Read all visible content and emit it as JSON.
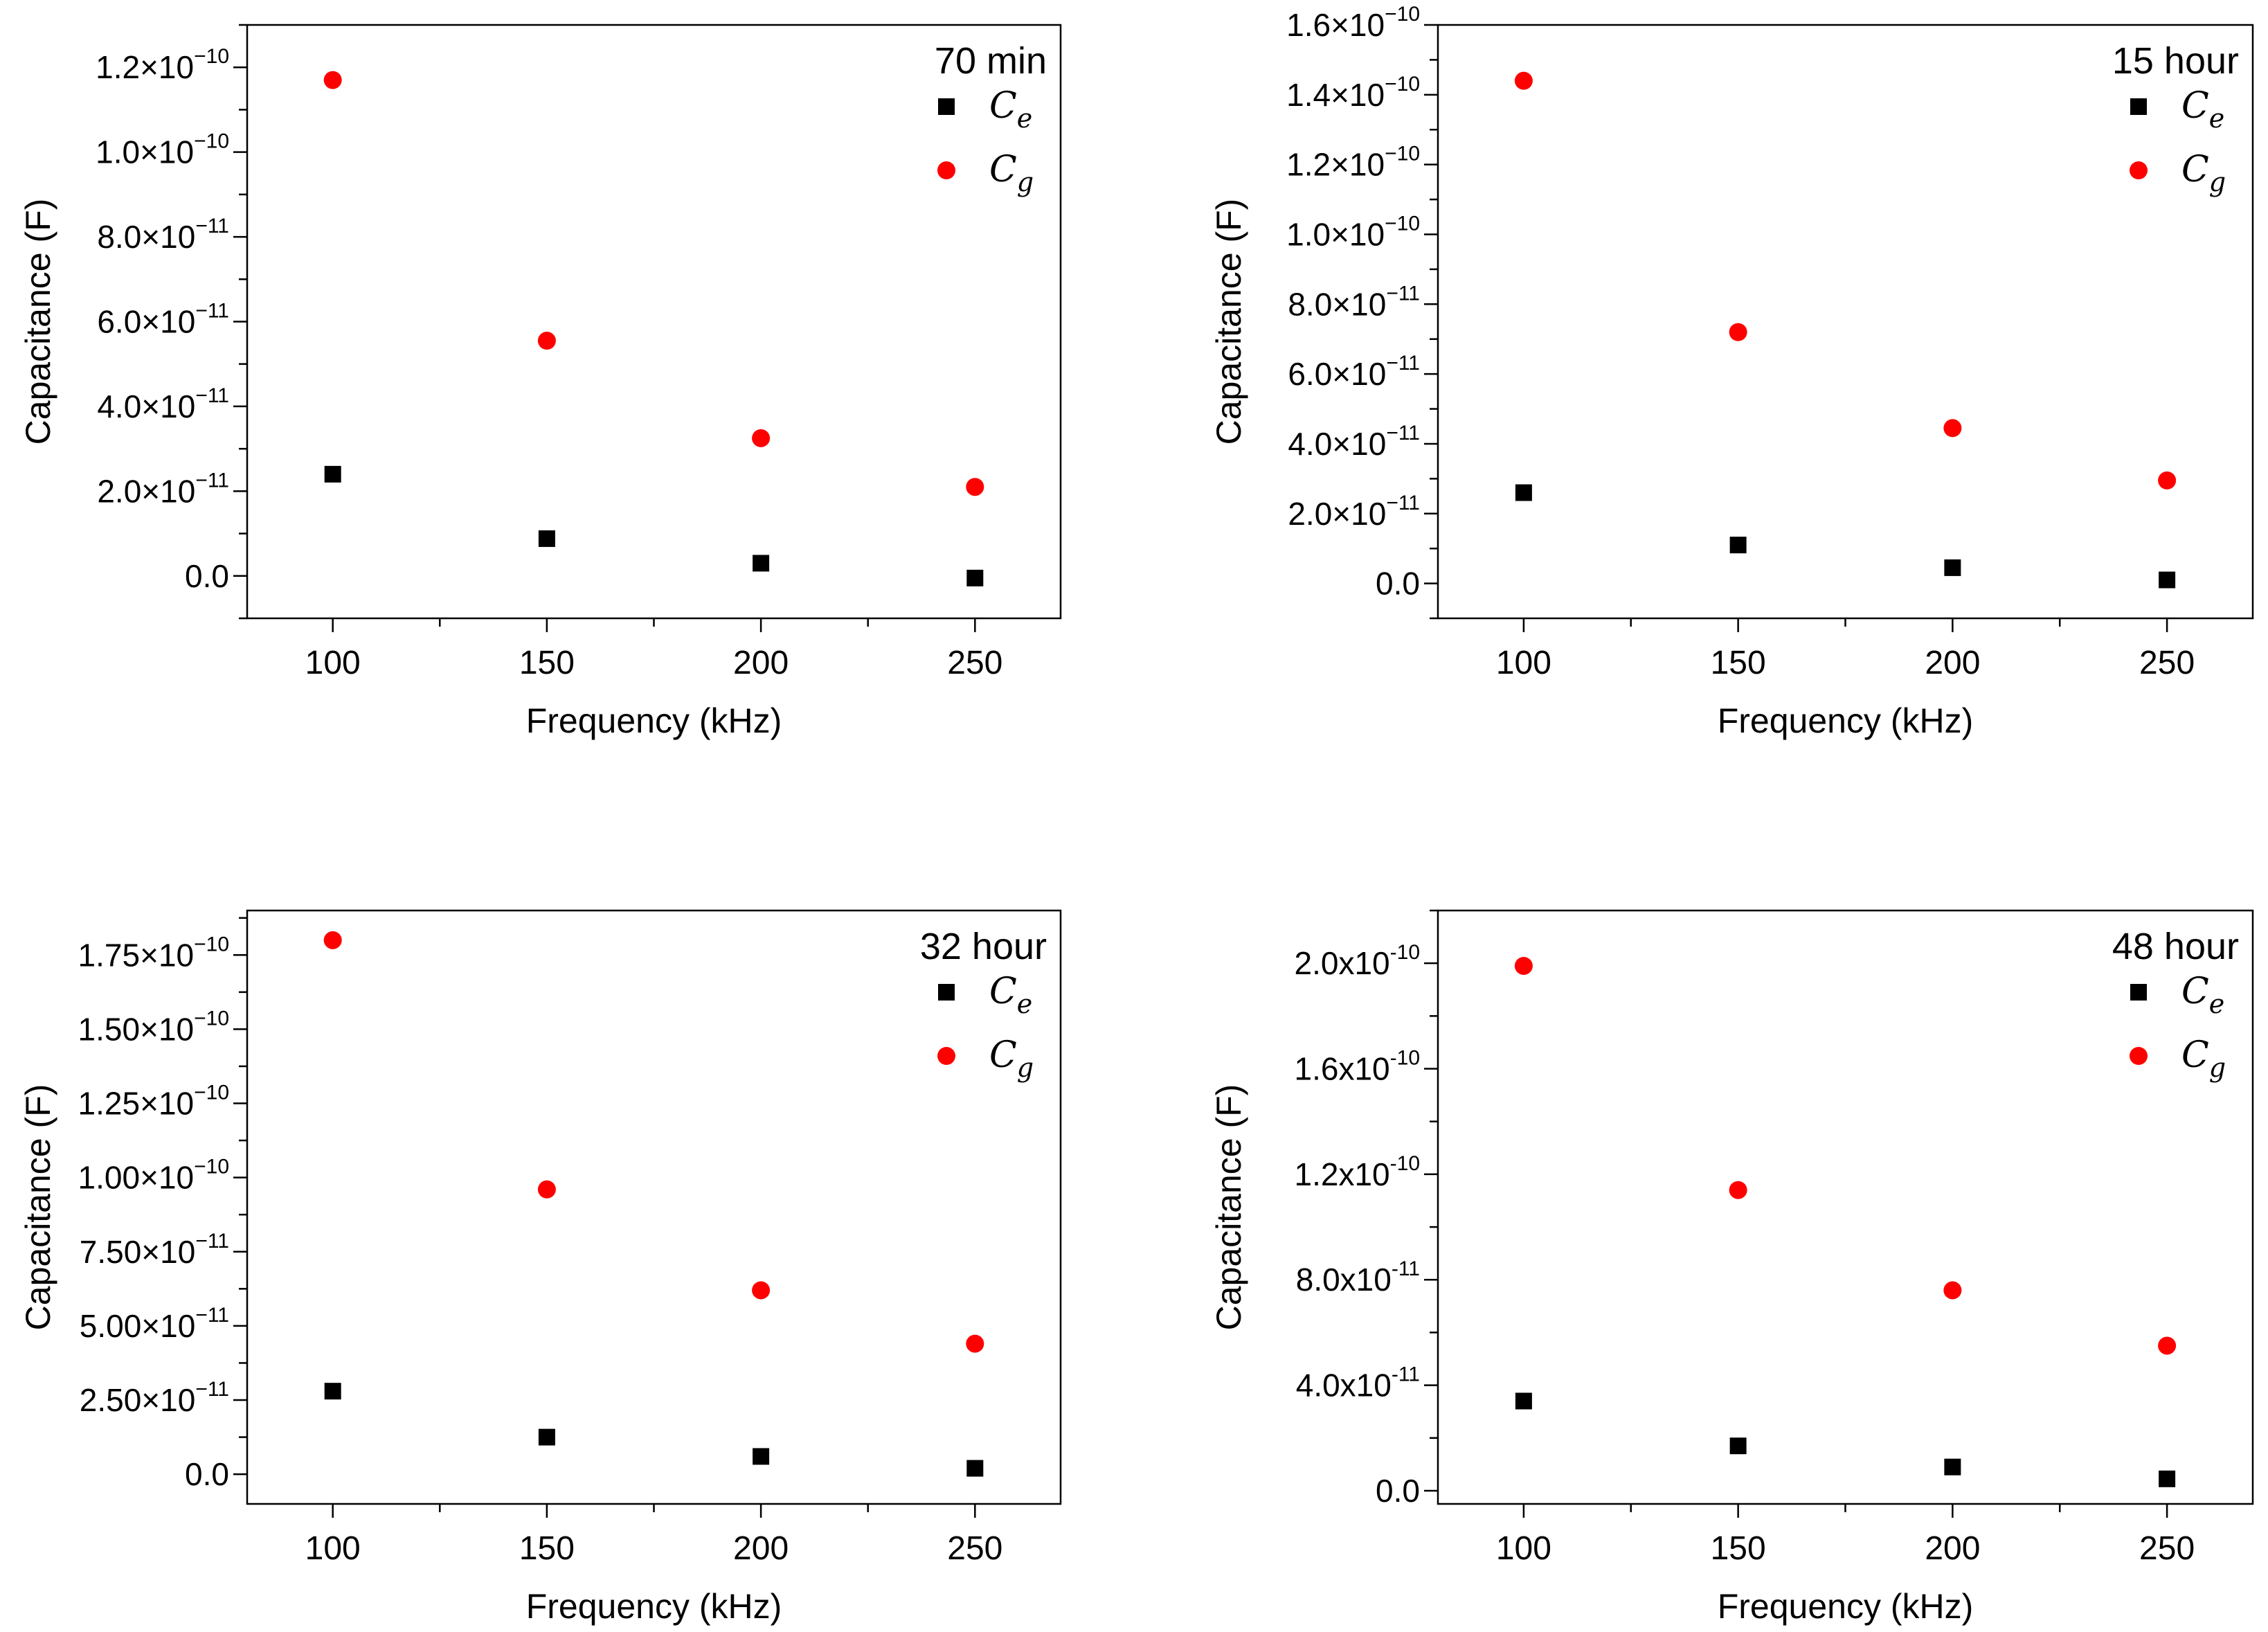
{
  "colors": {
    "Ce": "#000000",
    "Cg": "#ff0000",
    "axis": "#000000"
  },
  "chart_data": [
    {
      "type": "scatter",
      "title": "70 min",
      "xlabel": "Frequency (kHz)",
      "ylabel": "Capacitance (F)",
      "xlim": [
        80,
        270
      ],
      "ylim": [
        -1e-11,
        1.3e-10
      ],
      "xticks": [
        100,
        150,
        200,
        250
      ],
      "xtick_labels": [
        "100",
        "150",
        "200",
        "250"
      ],
      "yticks": [
        0,
        2e-11,
        4e-11,
        6e-11,
        8e-11,
        1e-10,
        1.2e-10
      ],
      "ytick_labels": [
        {
          "base": "0.0",
          "exp": ""
        },
        {
          "base": "2.0×10",
          "exp": "−11"
        },
        {
          "base": "4.0×10",
          "exp": "−11"
        },
        {
          "base": "6.0×10",
          "exp": "−11"
        },
        {
          "base": "8.0×10",
          "exp": "−11"
        },
        {
          "base": "1.0×10",
          "exp": "−10"
        },
        {
          "base": "1.2×10",
          "exp": "−10"
        }
      ],
      "x": [
        100,
        150,
        200,
        250
      ],
      "series": [
        {
          "name": "Ce",
          "label_base": "C",
          "label_sub": "e",
          "marker": "square",
          "values": [
            2.4e-11,
            8.8e-12,
            3e-12,
            -5e-13
          ]
        },
        {
          "name": "Cg",
          "label_base": "C",
          "label_sub": "g",
          "marker": "circle",
          "values": [
            1.17e-10,
            5.55e-11,
            3.25e-11,
            2.1e-11
          ]
        }
      ]
    },
    {
      "type": "scatter",
      "title": "15 hour",
      "xlabel": "Frequency (kHz)",
      "ylabel": "Capacitance (F)",
      "xlim": [
        80,
        270
      ],
      "ylim": [
        -1e-11,
        1.6e-10
      ],
      "xticks": [
        100,
        150,
        200,
        250
      ],
      "xtick_labels": [
        "100",
        "150",
        "200",
        "250"
      ],
      "yticks": [
        0,
        2e-11,
        4e-11,
        6e-11,
        8e-11,
        1e-10,
        1.2e-10,
        1.4e-10,
        1.6e-10
      ],
      "ytick_labels": [
        {
          "base": "0.0",
          "exp": ""
        },
        {
          "base": "2.0×10",
          "exp": "−11"
        },
        {
          "base": "4.0×10",
          "exp": "−11"
        },
        {
          "base": "6.0×10",
          "exp": "−11"
        },
        {
          "base": "8.0×10",
          "exp": "−11"
        },
        {
          "base": "1.0×10",
          "exp": "−10"
        },
        {
          "base": "1.2×10",
          "exp": "−10"
        },
        {
          "base": "1.4×10",
          "exp": "−10"
        },
        {
          "base": "1.6×10",
          "exp": "−10"
        }
      ],
      "x": [
        100,
        150,
        200,
        250
      ],
      "series": [
        {
          "name": "Ce",
          "label_base": "C",
          "label_sub": "e",
          "marker": "square",
          "values": [
            2.6e-11,
            1.1e-11,
            4.5e-12,
            1e-12
          ]
        },
        {
          "name": "Cg",
          "label_base": "C",
          "label_sub": "g",
          "marker": "circle",
          "values": [
            1.44e-10,
            7.2e-11,
            4.45e-11,
            2.95e-11
          ]
        }
      ]
    },
    {
      "type": "scatter",
      "title": "32 hour",
      "xlabel": "Frequency (kHz)",
      "ylabel": "Capacitance (F)",
      "xlim": [
        80,
        270
      ],
      "ylim": [
        -1e-11,
        1.9e-10
      ],
      "xticks": [
        100,
        150,
        200,
        250
      ],
      "xtick_labels": [
        "100",
        "150",
        "200",
        "250"
      ],
      "yticks": [
        0,
        2.5e-11,
        5e-11,
        7.5e-11,
        1e-10,
        1.25e-10,
        1.5e-10,
        1.75e-10
      ],
      "ytick_labels": [
        {
          "base": "0.0",
          "exp": ""
        },
        {
          "base": "2.50×10",
          "exp": "−11"
        },
        {
          "base": "5.00×10",
          "exp": "−11"
        },
        {
          "base": "7.50×10",
          "exp": "−11"
        },
        {
          "base": "1.00×10",
          "exp": "−10"
        },
        {
          "base": "1.25×10",
          "exp": "−10"
        },
        {
          "base": "1.50×10",
          "exp": "−10"
        },
        {
          "base": "1.75×10",
          "exp": "−10"
        }
      ],
      "x": [
        100,
        150,
        200,
        250
      ],
      "series": [
        {
          "name": "Ce",
          "label_base": "C",
          "label_sub": "e",
          "marker": "square",
          "values": [
            2.8e-11,
            1.25e-11,
            6e-12,
            2e-12
          ]
        },
        {
          "name": "Cg",
          "label_base": "C",
          "label_sub": "g",
          "marker": "circle",
          "values": [
            1.8e-10,
            9.6e-11,
            6.2e-11,
            4.4e-11
          ]
        }
      ]
    },
    {
      "type": "scatter",
      "title": "48 hour",
      "xlabel": "Frequency (kHz)",
      "ylabel": "Capacitance (F)",
      "xlim": [
        80,
        270
      ],
      "ylim": [
        -5e-12,
        2.2e-10
      ],
      "xticks": [
        100,
        150,
        200,
        250
      ],
      "xtick_labels": [
        "100",
        "150",
        "200",
        "250"
      ],
      "yticks": [
        0,
        4e-11,
        8e-11,
        1.2e-10,
        1.6e-10,
        2e-10
      ],
      "ytick_labels": [
        {
          "base": "0.0",
          "exp": ""
        },
        {
          "base": "4.0x10",
          "exp": "-11"
        },
        {
          "base": "8.0x10",
          "exp": "-11"
        },
        {
          "base": "1.2x10",
          "exp": "-10"
        },
        {
          "base": "1.6x10",
          "exp": "-10"
        },
        {
          "base": "2.0x10",
          "exp": "-10"
        }
      ],
      "x": [
        100,
        150,
        200,
        250
      ],
      "series": [
        {
          "name": "Ce",
          "label_base": "C",
          "label_sub": "e",
          "marker": "square",
          "values": [
            3.4e-11,
            1.7e-11,
            9e-12,
            4.5e-12
          ]
        },
        {
          "name": "Cg",
          "label_base": "C",
          "label_sub": "g",
          "marker": "circle",
          "values": [
            1.99e-10,
            1.14e-10,
            7.6e-11,
            5.5e-11
          ]
        }
      ]
    }
  ]
}
